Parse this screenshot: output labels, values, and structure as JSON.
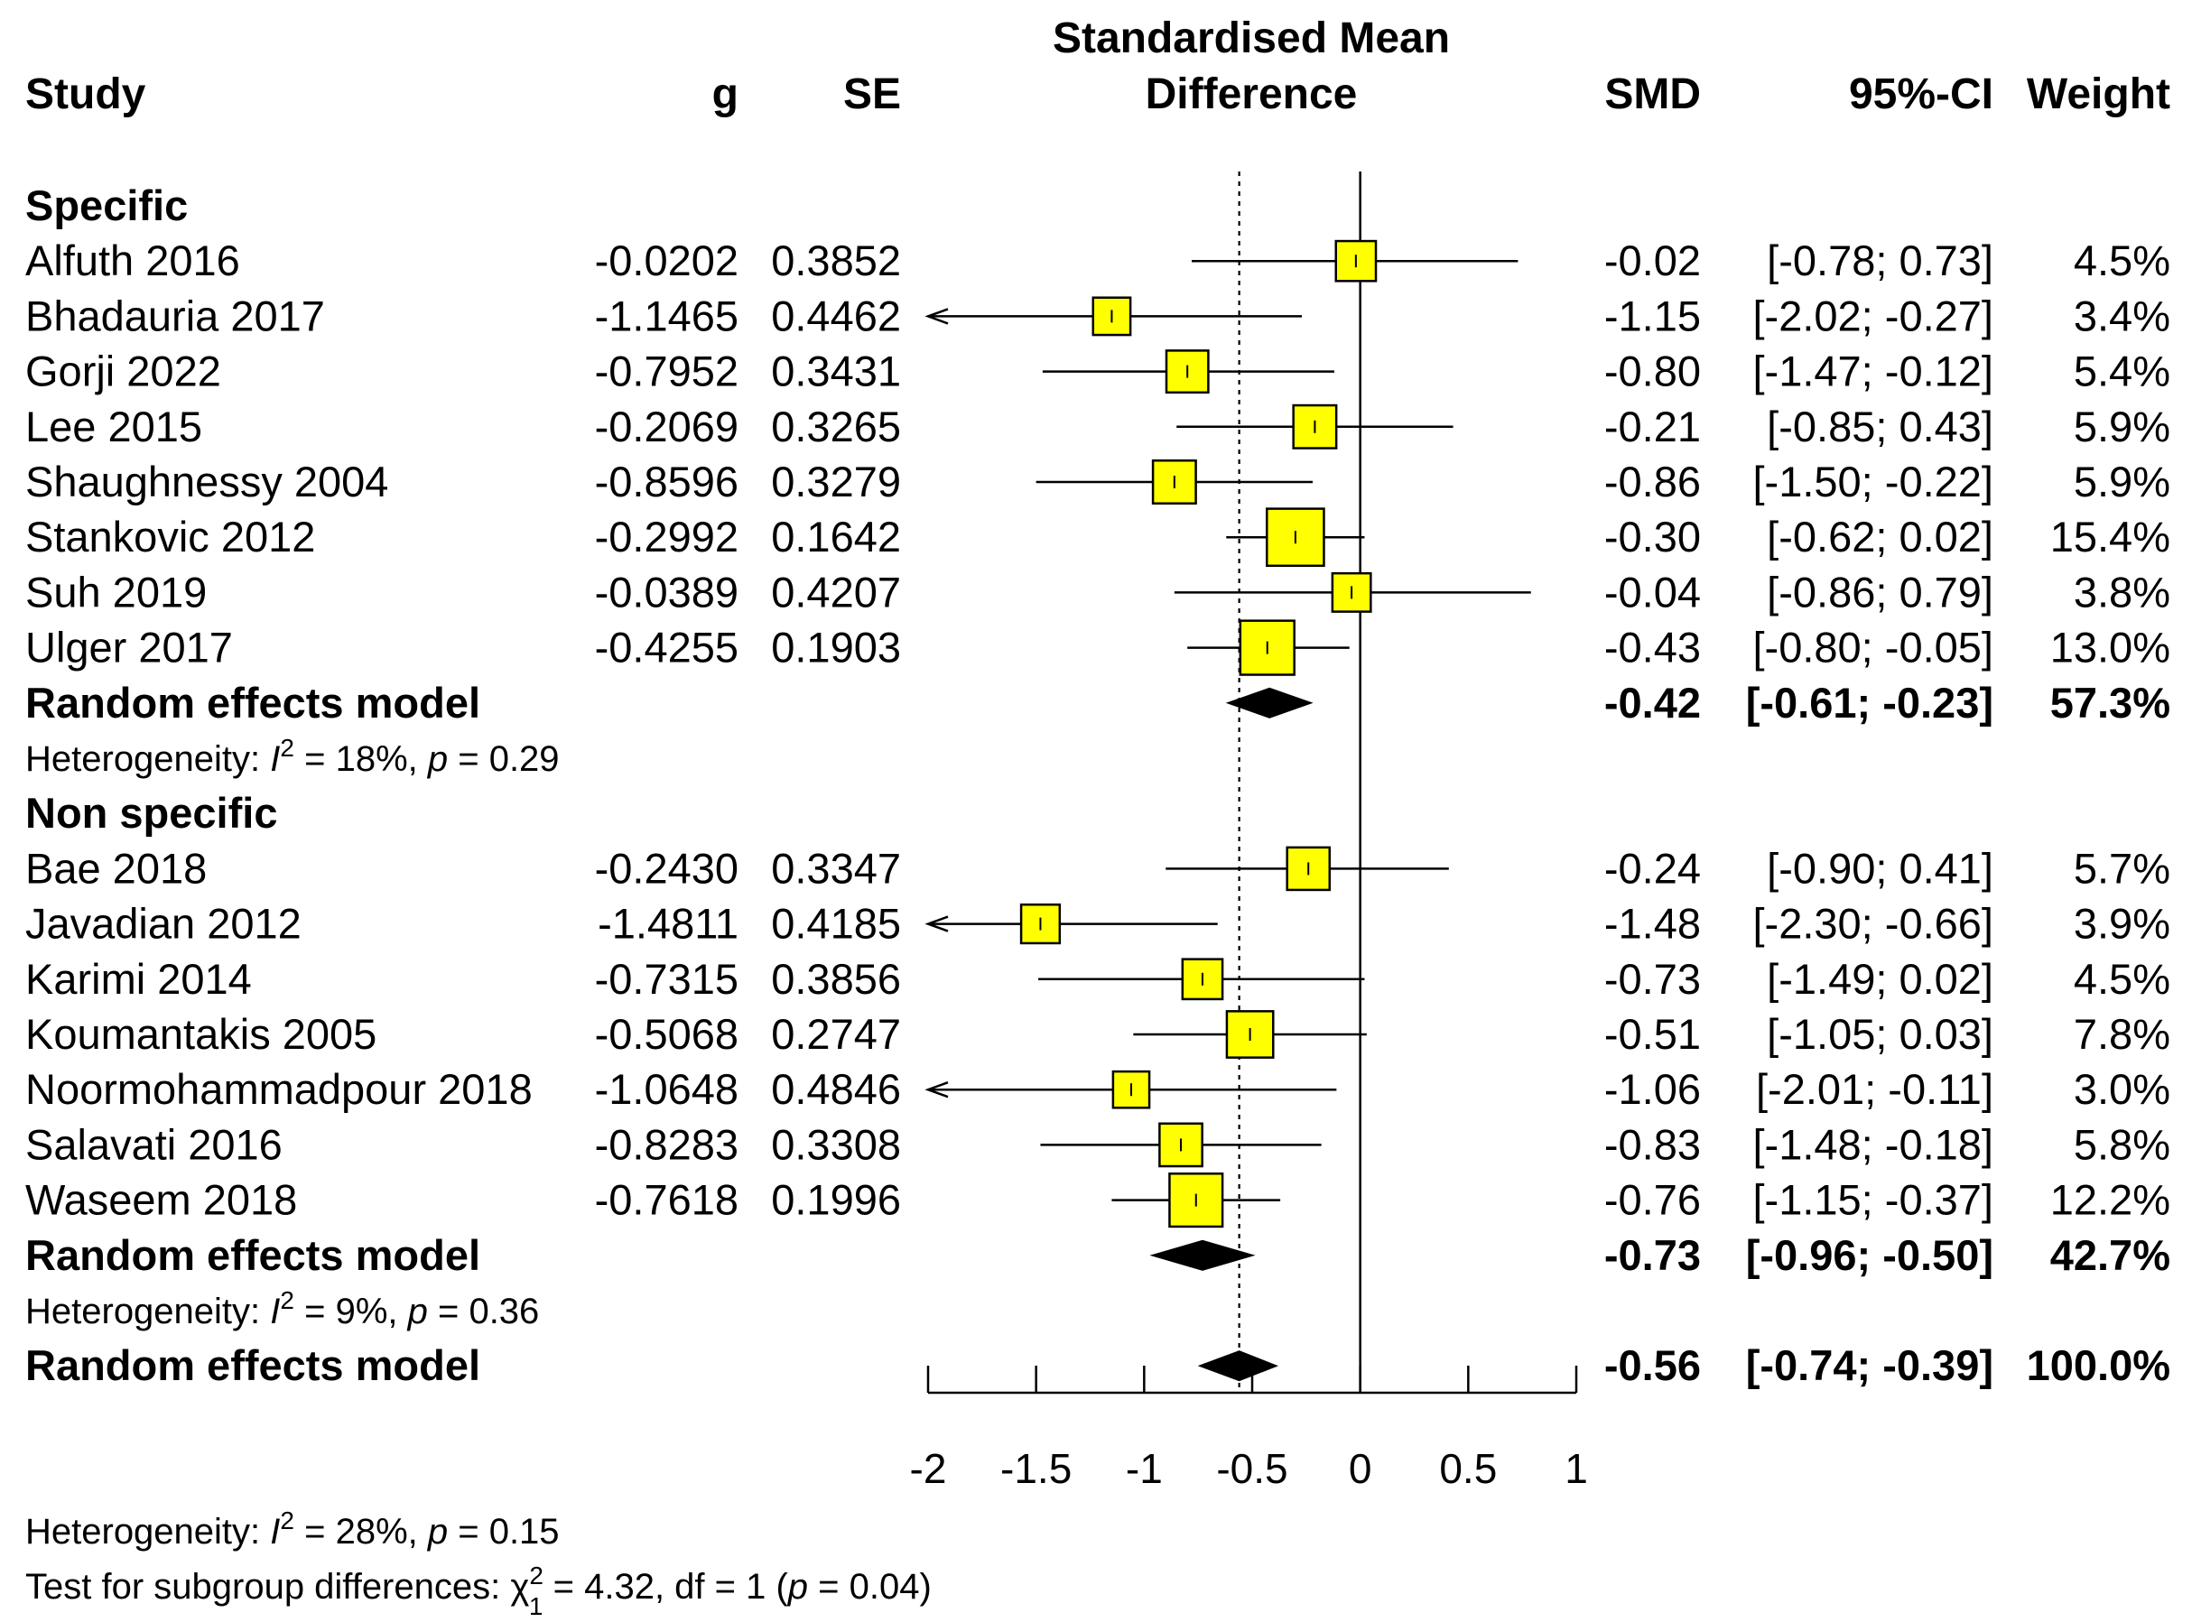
{
  "chart_data": {
    "type": "forest",
    "headers": {
      "study": "Study",
      "g": "g",
      "se": "SE",
      "effect_line1": "Standardised Mean",
      "effect_line2": "Difference",
      "smd": "SMD",
      "ci": "95%-CI",
      "weight": "Weight"
    },
    "xlim": [
      -2,
      1
    ],
    "xticks": [
      "-2",
      "-1.5",
      "-1",
      "-0.5",
      "0",
      "0.5",
      "1"
    ],
    "xtick_values": [
      -2,
      -1.5,
      -1,
      -0.5,
      0,
      0.5,
      1
    ],
    "null_value": 0,
    "overall_smd_value": -0.56,
    "box_color": "#ffff00",
    "groups": [
      {
        "name": "Specific",
        "studies": [
          {
            "study": "Alfuth 2016",
            "g": "-0.0202",
            "se": "0.3852",
            "smd": -0.02,
            "lower": -0.78,
            "upper": 0.73,
            "smd_text": "-0.02",
            "ci_text": "[-0.78;  0.73]",
            "weight_text": "4.5%",
            "weight": 4.5
          },
          {
            "study": "Bhadauria 2017",
            "g": "-1.1465",
            "se": "0.4462",
            "smd": -1.15,
            "lower": -2.02,
            "upper": -0.27,
            "smd_text": "-1.15",
            "ci_text": "[-2.02; -0.27]",
            "weight_text": "3.4%",
            "weight": 3.4
          },
          {
            "study": "Gorji 2022",
            "g": "-0.7952",
            "se": "0.3431",
            "smd": -0.8,
            "lower": -1.47,
            "upper": -0.12,
            "smd_text": "-0.80",
            "ci_text": "[-1.47; -0.12]",
            "weight_text": "5.4%",
            "weight": 5.4
          },
          {
            "study": "Lee 2015",
            "g": "-0.2069",
            "se": "0.3265",
            "smd": -0.21,
            "lower": -0.85,
            "upper": 0.43,
            "smd_text": "-0.21",
            "ci_text": "[-0.85;  0.43]",
            "weight_text": "5.9%",
            "weight": 5.9
          },
          {
            "study": "Shaughnessy 2004",
            "g": "-0.8596",
            "se": "0.3279",
            "smd": -0.86,
            "lower": -1.5,
            "upper": -0.22,
            "smd_text": "-0.86",
            "ci_text": "[-1.50; -0.22]",
            "weight_text": "5.9%",
            "weight": 5.9
          },
          {
            "study": "Stankovic 2012",
            "g": "-0.2992",
            "se": "0.1642",
            "smd": -0.3,
            "lower": -0.62,
            "upper": 0.02,
            "smd_text": "-0.30",
            "ci_text": "[-0.62;  0.02]",
            "weight_text": "15.4%",
            "weight": 15.4
          },
          {
            "study": "Suh 2019",
            "g": "-0.0389",
            "se": "0.4207",
            "smd": -0.04,
            "lower": -0.86,
            "upper": 0.79,
            "smd_text": "-0.04",
            "ci_text": "[-0.86;  0.79]",
            "weight_text": "3.8%",
            "weight": 3.8
          },
          {
            "study": "Ulger 2017",
            "g": "-0.4255",
            "se": "0.1903",
            "smd": -0.43,
            "lower": -0.8,
            "upper": -0.05,
            "smd_text": "-0.43",
            "ci_text": "[-0.80; -0.05]",
            "weight_text": "13.0%",
            "weight": 13.0
          }
        ],
        "model": {
          "label": "Random effects model",
          "smd": -0.42,
          "lower": -0.61,
          "upper": -0.23,
          "smd_text": "-0.42",
          "ci_text": "[-0.61; -0.23]",
          "weight_text": "57.3%"
        },
        "heterogeneity": {
          "prefix": "Heterogeneity: ",
          "i": "I",
          "sup": "2",
          "mid": " = 18%, ",
          "p": "p",
          "tail": " = 0.29"
        }
      },
      {
        "name": "Non specific",
        "studies": [
          {
            "study": "Bae 2018",
            "g": "-0.2430",
            "se": "0.3347",
            "smd": -0.24,
            "lower": -0.9,
            "upper": 0.41,
            "smd_text": "-0.24",
            "ci_text": "[-0.90;  0.41]",
            "weight_text": "5.7%",
            "weight": 5.7
          },
          {
            "study": "Javadian 2012",
            "g": "-1.4811",
            "se": "0.4185",
            "smd": -1.48,
            "lower": -2.3,
            "upper": -0.66,
            "smd_text": "-1.48",
            "ci_text": "[-2.30; -0.66]",
            "weight_text": "3.9%",
            "weight": 3.9
          },
          {
            "study": "Karimi 2014",
            "g": "-0.7315",
            "se": "0.3856",
            "smd": -0.73,
            "lower": -1.49,
            "upper": 0.02,
            "smd_text": "-0.73",
            "ci_text": "[-1.49;  0.02]",
            "weight_text": "4.5%",
            "weight": 4.5
          },
          {
            "study": "Koumantakis 2005",
            "g": "-0.5068",
            "se": "0.2747",
            "smd": -0.51,
            "lower": -1.05,
            "upper": 0.03,
            "smd_text": "-0.51",
            "ci_text": "[-1.05;  0.03]",
            "weight_text": "7.8%",
            "weight": 7.8
          },
          {
            "study": "Noormohammadpour 2018",
            "g": "-1.0648",
            "se": "0.4846",
            "smd": -1.06,
            "lower": -2.01,
            "upper": -0.11,
            "smd_text": "-1.06",
            "ci_text": "[-2.01; -0.11]",
            "weight_text": "3.0%",
            "weight": 3.0
          },
          {
            "study": "Salavati 2016",
            "g": "-0.8283",
            "se": "0.3308",
            "smd": -0.83,
            "lower": -1.48,
            "upper": -0.18,
            "smd_text": "-0.83",
            "ci_text": "[-1.48; -0.18]",
            "weight_text": "5.8%",
            "weight": 5.8
          },
          {
            "study": "Waseem 2018",
            "g": "-0.7618",
            "se": "0.1996",
            "smd": -0.76,
            "lower": -1.15,
            "upper": -0.37,
            "smd_text": "-0.76",
            "ci_text": "[-1.15; -0.37]",
            "weight_text": "12.2%",
            "weight": 12.2
          }
        ],
        "model": {
          "label": "Random effects model",
          "smd": -0.73,
          "lower": -0.96,
          "upper": -0.5,
          "smd_text": "-0.73",
          "ci_text": "[-0.96; -0.50]",
          "weight_text": "42.7%"
        },
        "heterogeneity": {
          "prefix": "Heterogeneity: ",
          "i": "I",
          "sup": "2",
          "mid": " = 9%, ",
          "p": "p",
          "tail": " = 0.36"
        }
      }
    ],
    "overall": {
      "label": "Random effects model",
      "smd": -0.56,
      "lower": -0.74,
      "upper": -0.39,
      "smd_text": "-0.56",
      "ci_text": "[-0.74; -0.39]",
      "weight_text": "100.0%"
    },
    "footer": {
      "heterogeneity": {
        "prefix": "Heterogeneity: ",
        "i": "I",
        "sup": "2",
        "mid": " = 28%, ",
        "p": "p",
        "tail": " = 0.15"
      },
      "subgroup_test": {
        "prefix": "Test for subgroup differences: ",
        "chi": "χ",
        "sup": "2",
        "sub": "1",
        "mid": " = 4.32, df = 1 (",
        "p": "p",
        "tail": " = 0.04)"
      }
    }
  }
}
